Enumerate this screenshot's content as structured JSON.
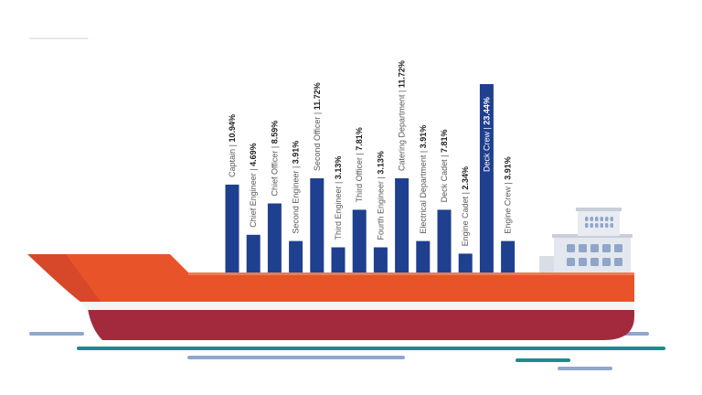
{
  "colors": {
    "bar": "#1f3f8f",
    "hull_top": "#e8532a",
    "hull_stripe": "#ffffff",
    "hull_bottom": "#a32a3c",
    "cabin": "#dfe3ea",
    "window": "#8fa6c8",
    "water_teal": "#1f8a8c",
    "water_blue": "#8ea7cc"
  },
  "chart_data": {
    "type": "bar",
    "categories": [
      "Captain",
      "Chief Engineer",
      "Chief Officer",
      "Second Engineer",
      "Second Officer",
      "Third Engineer",
      "Third Officer",
      "Fourth Engineer",
      "Catering Department",
      "Electrical Department",
      "Deck Cadet",
      "Engine Cadet",
      "Deck Crew",
      "Engine Crew"
    ],
    "values": [
      10.94,
      4.69,
      8.59,
      3.91,
      11.72,
      3.13,
      7.81,
      3.13,
      11.72,
      3.91,
      7.81,
      2.34,
      23.44,
      3.91
    ],
    "value_labels": [
      "10.94%",
      "4.69%",
      "8.59%",
      "3.91%",
      "11.72%",
      "3.13%",
      "7.81%",
      "3.13%",
      "11.72%",
      "3.91%",
      "7.81%",
      "2.34%",
      "23.44%",
      "3.91%"
    ],
    "separator": " | ",
    "highlight_index": 12,
    "ylim": [
      0,
      23.44
    ],
    "legend": "none",
    "grid": false
  }
}
